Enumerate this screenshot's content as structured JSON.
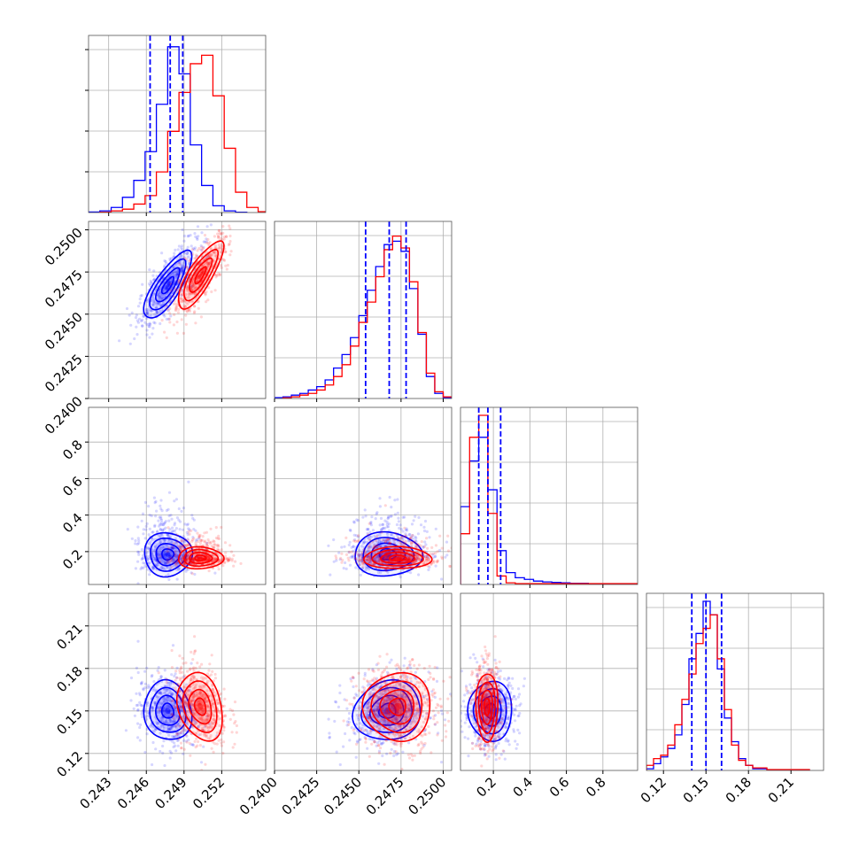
{
  "chart_data": {
    "type": "corner",
    "grid": true,
    "series": [
      {
        "color": "#0000ff"
      },
      {
        "color": "#ff0000"
      }
    ],
    "params": [
      {
        "range": [
          0.2414,
          0.2555
        ],
        "ticks": [
          0.243,
          0.246,
          0.249,
          0.252
        ],
        "tick_labels": [
          "0.243",
          "0.246",
          "0.249",
          "0.252"
        ]
      },
      {
        "range": [
          0.24,
          0.2505
        ],
        "ticks": [
          0.24,
          0.2425,
          0.245,
          0.2475,
          0.25
        ],
        "tick_labels": [
          "0.2400",
          "0.2425",
          "0.2450",
          "0.2475",
          "0.2500"
        ]
      },
      {
        "range": [
          0.02,
          0.99
        ],
        "ticks": [
          0.2,
          0.4,
          0.6,
          0.8
        ],
        "tick_labels": [
          "0.2",
          "0.4",
          "0.6",
          "0.8"
        ]
      },
      {
        "range": [
          0.108,
          0.233
        ],
        "ticks": [
          0.12,
          0.15,
          0.18,
          0.21
        ],
        "tick_labels": [
          "0.12",
          "0.15",
          "0.18",
          "0.21"
        ]
      }
    ],
    "histograms": [
      {
        "param": 0,
        "quantiles": [
          0.2463,
          0.2479,
          0.2489
        ],
        "blue": [
          [
            0.2414,
            0.2423,
            0.003
          ],
          [
            0.2423,
            0.2432,
            0.01
          ],
          [
            0.2432,
            0.2441,
            0.03
          ],
          [
            0.2441,
            0.245,
            0.09
          ],
          [
            0.245,
            0.2459,
            0.19
          ],
          [
            0.2459,
            0.2468,
            0.36
          ],
          [
            0.2468,
            0.2477,
            0.64
          ],
          [
            0.2477,
            0.2486,
            0.98
          ],
          [
            0.2486,
            0.2495,
            0.82
          ],
          [
            0.2495,
            0.2504,
            0.4
          ],
          [
            0.2504,
            0.2513,
            0.16
          ],
          [
            0.2513,
            0.2522,
            0.04
          ],
          [
            0.2522,
            0.2531,
            0.01
          ],
          [
            0.2531,
            0.254,
            0.002
          ]
        ],
        "red": [
          [
            0.2423,
            0.2432,
            0.002
          ],
          [
            0.2432,
            0.2441,
            0.01
          ],
          [
            0.2441,
            0.245,
            0.02
          ],
          [
            0.245,
            0.2459,
            0.05
          ],
          [
            0.2459,
            0.2468,
            0.1
          ],
          [
            0.2468,
            0.2477,
            0.24
          ],
          [
            0.2477,
            0.2486,
            0.48
          ],
          [
            0.2486,
            0.2495,
            0.71
          ],
          [
            0.2495,
            0.2504,
            0.88
          ],
          [
            0.2504,
            0.2513,
            0.93
          ],
          [
            0.2513,
            0.2522,
            0.69
          ],
          [
            0.2522,
            0.2531,
            0.38
          ],
          [
            0.2531,
            0.254,
            0.12
          ],
          [
            0.254,
            0.2549,
            0.03
          ],
          [
            0.2549,
            0.2555,
            0.005
          ]
        ]
      },
      {
        "param": 1,
        "quantiles": [
          0.2454,
          0.2468,
          0.2478
        ],
        "blue": [
          [
            0.24,
            0.2405,
            0.005
          ],
          [
            0.2405,
            0.241,
            0.01
          ],
          [
            0.241,
            0.2415,
            0.02
          ],
          [
            0.2415,
            0.242,
            0.03
          ],
          [
            0.242,
            0.2425,
            0.05
          ],
          [
            0.2425,
            0.243,
            0.07
          ],
          [
            0.243,
            0.2435,
            0.11
          ],
          [
            0.2435,
            0.244,
            0.18
          ],
          [
            0.244,
            0.2445,
            0.26
          ],
          [
            0.2445,
            0.245,
            0.36
          ],
          [
            0.245,
            0.2455,
            0.49
          ],
          [
            0.2455,
            0.246,
            0.64
          ],
          [
            0.246,
            0.2465,
            0.78
          ],
          [
            0.2465,
            0.247,
            0.91
          ],
          [
            0.247,
            0.2475,
            0.93
          ],
          [
            0.2475,
            0.248,
            0.87
          ],
          [
            0.248,
            0.2485,
            0.65
          ],
          [
            0.2485,
            0.249,
            0.38
          ],
          [
            0.249,
            0.2495,
            0.13
          ],
          [
            0.2495,
            0.25,
            0.03
          ],
          [
            0.25,
            0.2505,
            0.005
          ]
        ],
        "red": [
          [
            0.2405,
            0.241,
            0.004
          ],
          [
            0.241,
            0.2415,
            0.01
          ],
          [
            0.2415,
            0.242,
            0.02
          ],
          [
            0.242,
            0.2425,
            0.03
          ],
          [
            0.2425,
            0.243,
            0.05
          ],
          [
            0.243,
            0.2435,
            0.08
          ],
          [
            0.2435,
            0.244,
            0.13
          ],
          [
            0.244,
            0.2445,
            0.2
          ],
          [
            0.2445,
            0.245,
            0.31
          ],
          [
            0.245,
            0.2455,
            0.45
          ],
          [
            0.2455,
            0.246,
            0.57
          ],
          [
            0.246,
            0.2465,
            0.72
          ],
          [
            0.2465,
            0.247,
            0.88
          ],
          [
            0.247,
            0.2475,
            0.96
          ],
          [
            0.2475,
            0.248,
            0.89
          ],
          [
            0.248,
            0.2485,
            0.69
          ],
          [
            0.2485,
            0.249,
            0.39
          ],
          [
            0.249,
            0.2495,
            0.15
          ],
          [
            0.2495,
            0.25,
            0.04
          ],
          [
            0.25,
            0.2505,
            0.01
          ]
        ]
      },
      {
        "param": 2,
        "quantiles": [
          0.12,
          0.17,
          0.24
        ],
        "blue": [
          [
            0.02,
            0.07,
            0.46
          ],
          [
            0.07,
            0.12,
            0.73
          ],
          [
            0.12,
            0.17,
            0.87
          ],
          [
            0.17,
            0.22,
            0.56
          ],
          [
            0.22,
            0.27,
            0.2
          ],
          [
            0.27,
            0.32,
            0.07
          ],
          [
            0.32,
            0.37,
            0.04
          ],
          [
            0.37,
            0.42,
            0.03
          ],
          [
            0.42,
            0.47,
            0.02
          ],
          [
            0.47,
            0.52,
            0.015
          ],
          [
            0.52,
            0.57,
            0.012
          ],
          [
            0.57,
            0.62,
            0.01
          ],
          [
            0.62,
            0.72,
            0.007
          ],
          [
            0.72,
            0.99,
            0.004
          ]
        ],
        "red": [
          [
            0.02,
            0.07,
            0.3
          ],
          [
            0.07,
            0.12,
            0.87
          ],
          [
            0.12,
            0.17,
            1.0
          ],
          [
            0.17,
            0.22,
            0.42
          ],
          [
            0.22,
            0.27,
            0.05
          ],
          [
            0.27,
            0.32,
            0.01
          ],
          [
            0.32,
            0.99,
            0.005
          ]
        ]
      },
      {
        "param": 3,
        "quantiles": [
          0.14,
          0.15,
          0.161
        ],
        "blue": [
          [
            0.108,
            0.113,
            0.01
          ],
          [
            0.113,
            0.118,
            0.04
          ],
          [
            0.118,
            0.123,
            0.08
          ],
          [
            0.123,
            0.128,
            0.13
          ],
          [
            0.128,
            0.133,
            0.21
          ],
          [
            0.133,
            0.138,
            0.39
          ],
          [
            0.138,
            0.143,
            0.66
          ],
          [
            0.143,
            0.148,
            0.81
          ],
          [
            0.148,
            0.153,
            1.0
          ],
          [
            0.153,
            0.158,
            0.92
          ],
          [
            0.158,
            0.163,
            0.6
          ],
          [
            0.163,
            0.168,
            0.31
          ],
          [
            0.168,
            0.173,
            0.17
          ],
          [
            0.173,
            0.178,
            0.07
          ],
          [
            0.178,
            0.183,
            0.03
          ],
          [
            0.183,
            0.193,
            0.01
          ],
          [
            0.193,
            0.223,
            0.004
          ]
        ],
        "red": [
          [
            0.108,
            0.113,
            0.03
          ],
          [
            0.113,
            0.118,
            0.07
          ],
          [
            0.118,
            0.123,
            0.09
          ],
          [
            0.123,
            0.128,
            0.15
          ],
          [
            0.128,
            0.133,
            0.27
          ],
          [
            0.133,
            0.138,
            0.42
          ],
          [
            0.138,
            0.143,
            0.57
          ],
          [
            0.143,
            0.148,
            0.75
          ],
          [
            0.148,
            0.153,
            0.84
          ],
          [
            0.153,
            0.158,
            0.92
          ],
          [
            0.158,
            0.163,
            0.66
          ],
          [
            0.163,
            0.168,
            0.36
          ],
          [
            0.168,
            0.173,
            0.15
          ],
          [
            0.173,
            0.178,
            0.06
          ],
          [
            0.178,
            0.183,
            0.03
          ],
          [
            0.183,
            0.193,
            0.015
          ],
          [
            0.193,
            0.223,
            0.005
          ]
        ]
      }
    ],
    "pairs": [
      {
        "x": 0,
        "y": 1,
        "blue": {
          "mean": [
            0.2477,
            0.2467
          ],
          "sd": [
            0.00095,
            0.001
          ],
          "rho": 0.78
        },
        "red": {
          "mean": [
            0.2503,
            0.2473
          ],
          "sd": [
            0.0009,
            0.001
          ],
          "rho": 0.8
        }
      },
      {
        "x": 0,
        "y": 2,
        "blue": {
          "mean": [
            0.2477,
            0.185
          ],
          "sd": [
            0.00095,
            0.06
          ],
          "rho": 0.0
        },
        "red": {
          "mean": [
            0.2503,
            0.165
          ],
          "sd": [
            0.0009,
            0.03
          ],
          "rho": 0.0
        }
      },
      {
        "x": 1,
        "y": 2,
        "blue": {
          "mean": [
            0.2467,
            0.185
          ],
          "sd": [
            0.001,
            0.06
          ],
          "rho": 0.0
        },
        "red": {
          "mean": [
            0.2473,
            0.165
          ],
          "sd": [
            0.001,
            0.03
          ],
          "rho": 0.0
        }
      },
      {
        "x": 0,
        "y": 3,
        "blue": {
          "mean": [
            0.2477,
            0.15
          ],
          "sd": [
            0.00095,
            0.0105
          ],
          "rho": -0.1
        },
        "red": {
          "mean": [
            0.2503,
            0.153
          ],
          "sd": [
            0.0009,
            0.012
          ],
          "rho": -0.25
        }
      },
      {
        "x": 1,
        "y": 3,
        "blue": {
          "mean": [
            0.2467,
            0.15
          ],
          "sd": [
            0.001,
            0.0105
          ],
          "rho": 0.1
        },
        "red": {
          "mean": [
            0.2473,
            0.153
          ],
          "sd": [
            0.001,
            0.012
          ],
          "rho": 0.0
        }
      },
      {
        "x": 2,
        "y": 3,
        "blue": {
          "mean": [
            0.185,
            0.15
          ],
          "sd": [
            0.06,
            0.0105
          ],
          "rho": 0.0
        },
        "red": {
          "mean": [
            0.165,
            0.153
          ],
          "sd": [
            0.03,
            0.012
          ],
          "rho": 0.0
        }
      }
    ]
  }
}
